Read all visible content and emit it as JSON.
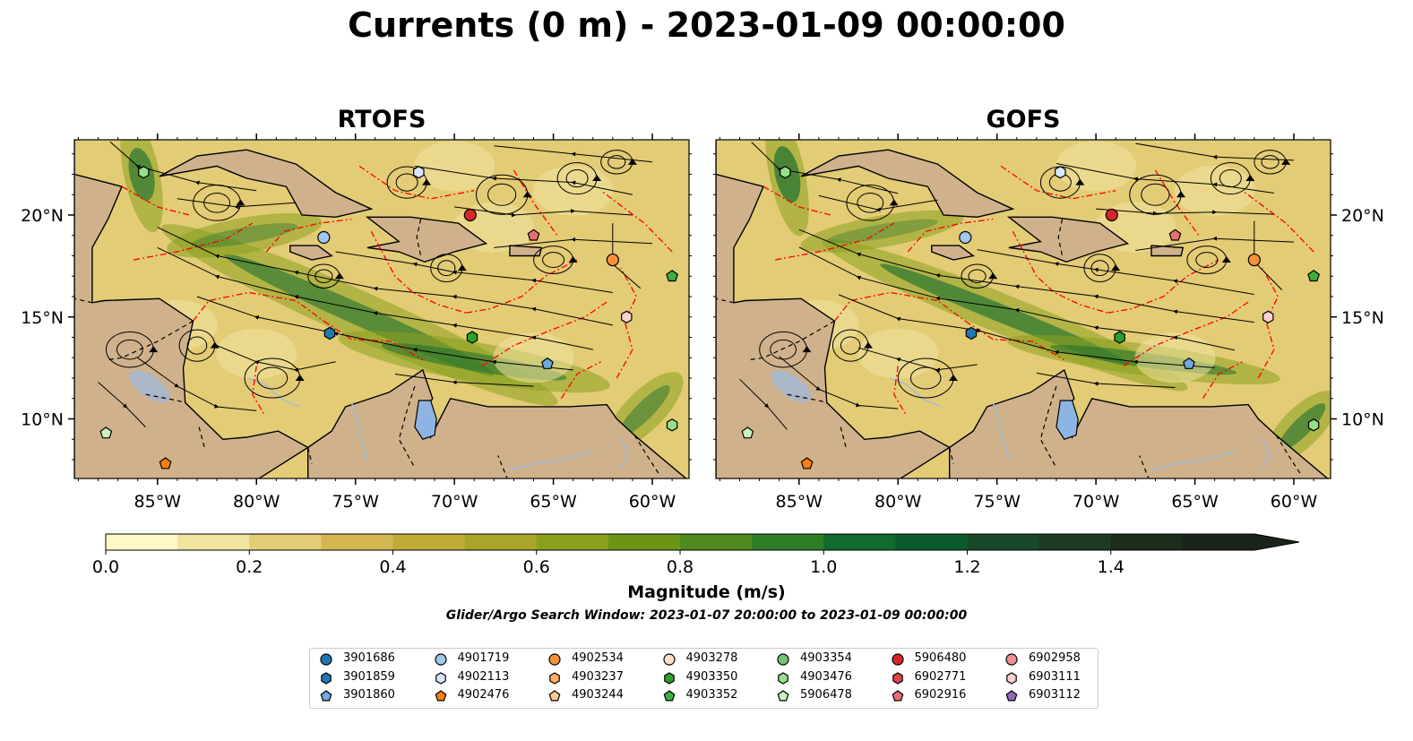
{
  "title": "Currents (0 m) - 2023-01-09 00:00:00",
  "panels": [
    {
      "title": "RTOFS"
    },
    {
      "title": "GOFS"
    }
  ],
  "axes": {
    "lon_ticks": [
      "85°W",
      "80°W",
      "75°W",
      "70°W",
      "65°W",
      "60°W"
    ],
    "lat_ticks": [
      "20°N",
      "15°N",
      "10°N"
    ]
  },
  "colorbar": {
    "label": "Magnitude (m/s)",
    "ticks": [
      "0.0",
      "0.2",
      "0.4",
      "0.6",
      "0.8",
      "1.0",
      "1.2",
      "1.4"
    ],
    "colors": [
      "#fdf8c8",
      "#f1e3a0",
      "#e3cc76",
      "#d5b752",
      "#c3ab3a",
      "#a8a52a",
      "#8aa01f",
      "#6c9518",
      "#4e8a1f",
      "#2f7c26",
      "#116a2e",
      "#0b5a2c",
      "#184a2a",
      "#1e3a24",
      "#1d2d1c",
      "#1b241a"
    ]
  },
  "search_window": "Glider/Argo Search Window: 2023-01-07 20:00:00 to 2023-01-09 00:00:00",
  "legend": [
    {
      "id": "3901686",
      "marker": "circle",
      "color": "#1f77b4"
    },
    {
      "id": "3901859",
      "marker": "hexagon",
      "color": "#1f77b4"
    },
    {
      "id": "3901860",
      "marker": "pentagon",
      "color": "#6fa8dc"
    },
    {
      "id": "4901719",
      "marker": "circle",
      "color": "#a0c8ea"
    },
    {
      "id": "4902113",
      "marker": "hexagon",
      "color": "#d6e8f8"
    },
    {
      "id": "4902476",
      "marker": "pentagon",
      "color": "#ff7f0e"
    },
    {
      "id": "4902534",
      "marker": "circle",
      "color": "#f5913a"
    },
    {
      "id": "4903237",
      "marker": "hexagon",
      "color": "#ffb066"
    },
    {
      "id": "4903244",
      "marker": "pentagon",
      "color": "#ffcc99"
    },
    {
      "id": "4903278",
      "marker": "circle",
      "color": "#fde2c6"
    },
    {
      "id": "4903350",
      "marker": "hexagon",
      "color": "#2ca02c"
    },
    {
      "id": "4903352",
      "marker": "pentagon",
      "color": "#3fae3f"
    },
    {
      "id": "4903354",
      "marker": "circle",
      "color": "#74c476"
    },
    {
      "id": "4903476",
      "marker": "hexagon",
      "color": "#98df8a"
    },
    {
      "id": "5906478",
      "marker": "pentagon",
      "color": "#c9f2c0"
    },
    {
      "id": "5906480",
      "marker": "circle",
      "color": "#d62728"
    },
    {
      "id": "6902771",
      "marker": "hexagon",
      "color": "#e04444"
    },
    {
      "id": "6902916",
      "marker": "pentagon",
      "color": "#e87070"
    },
    {
      "id": "6902958",
      "marker": "circle",
      "color": "#f09090"
    },
    {
      "id": "6903111",
      "marker": "hexagon",
      "color": "#fbd0d0"
    },
    {
      "id": "6903112",
      "marker": "pentagon",
      "color": "#9467bd"
    }
  ],
  "map_colors": {
    "land": "#cfb28c",
    "lake": "#8eb4e3",
    "river": "#a3bcd6",
    "eez": "#ff0000",
    "border": "#000000"
  }
}
